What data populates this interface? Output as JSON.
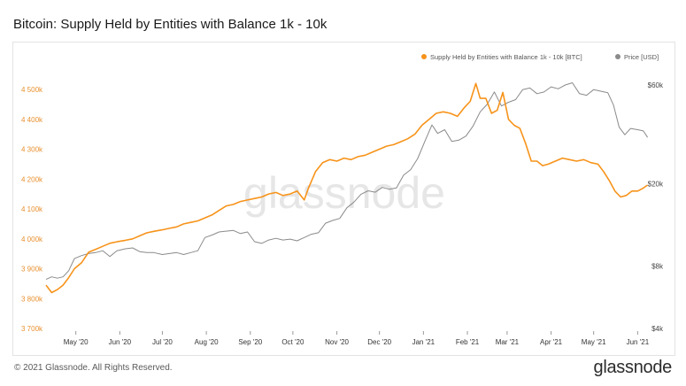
{
  "title": "Bitcoin: Supply Held by Entities with Balance 1k - 10k",
  "footer": {
    "copyright": "© 2021 Glassnode. All Rights Reserved.",
    "logo": "glassnode"
  },
  "watermark": "glassnode",
  "colors": {
    "supply": "#f7931a",
    "price": "#8a8a8a",
    "axis_left": "#e8902f",
    "axis_right": "#444444"
  },
  "chart_data": {
    "type": "line",
    "title": "Bitcoin: Supply Held by Entities with Balance 1k - 10k",
    "legend": {
      "placement": "top-right",
      "items": [
        "Supply Held by Entities with Balance 1k - 10k [BTC]",
        "Price [USD]"
      ]
    },
    "x_ticks": [
      "May '20",
      "Jun '20",
      "Jul '20",
      "Aug '20",
      "Sep '20",
      "Oct '20",
      "Nov '20",
      "Dec '20",
      "Jan '21",
      "Feb '21",
      "Mar '21",
      "Apr '21",
      "May '21",
      "Jun '21"
    ],
    "y_left": {
      "ticks": [
        "4 500k",
        "4 400k",
        "4 300k",
        "4 200k",
        "4 100k",
        "4 000k",
        "3 900k",
        "3 800k",
        "3 700k"
      ],
      "min": 3700000,
      "max": 4500000,
      "scale": "linear"
    },
    "y_right": {
      "ticks": [
        "$60k",
        "$20k",
        "$8k",
        "$4k"
      ],
      "scale": "log"
    },
    "grid": false,
    "series": [
      {
        "name": "Supply Held by Entities with Balance 1k - 10k [BTC]",
        "axis": "left",
        "x": [
          "2020-04-10",
          "2020-04-14",
          "2020-04-18",
          "2020-04-22",
          "2020-04-26",
          "2020-04-30",
          "2020-05-05",
          "2020-05-10",
          "2020-05-15",
          "2020-05-20",
          "2020-05-25",
          "2020-05-30",
          "2020-06-05",
          "2020-06-10",
          "2020-06-15",
          "2020-06-20",
          "2020-06-25",
          "2020-07-01",
          "2020-07-06",
          "2020-07-11",
          "2020-07-16",
          "2020-07-21",
          "2020-07-26",
          "2020-07-31",
          "2020-08-05",
          "2020-08-10",
          "2020-08-15",
          "2020-08-20",
          "2020-08-25",
          "2020-08-30",
          "2020-09-04",
          "2020-09-09",
          "2020-09-14",
          "2020-09-19",
          "2020-09-24",
          "2020-09-29",
          "2020-10-04",
          "2020-10-09",
          "2020-10-12",
          "2020-10-17",
          "2020-10-22",
          "2020-10-27",
          "2020-11-01",
          "2020-11-06",
          "2020-11-11",
          "2020-11-16",
          "2020-11-21",
          "2020-11-26",
          "2020-12-01",
          "2020-12-06",
          "2020-12-11",
          "2020-12-16",
          "2020-12-21",
          "2020-12-26",
          "2020-12-31",
          "2021-01-05",
          "2021-01-10",
          "2021-01-15",
          "2021-01-20",
          "2021-01-25",
          "2021-01-30",
          "2021-02-03",
          "2021-02-07",
          "2021-02-10",
          "2021-02-14",
          "2021-02-18",
          "2021-02-22",
          "2021-02-26",
          "2021-03-02",
          "2021-03-06",
          "2021-03-10",
          "2021-03-14",
          "2021-03-18",
          "2021-03-22",
          "2021-03-26",
          "2021-03-30",
          "2021-04-04",
          "2021-04-09",
          "2021-04-14",
          "2021-04-19",
          "2021-04-24",
          "2021-04-29",
          "2021-05-04",
          "2021-05-08",
          "2021-05-12",
          "2021-05-16",
          "2021-05-20",
          "2021-05-24",
          "2021-05-28",
          "2021-06-01",
          "2021-06-05",
          "2021-06-08"
        ],
        "y": [
          3845000,
          3820000,
          3830000,
          3845000,
          3870000,
          3900000,
          3920000,
          3955000,
          3965000,
          3975000,
          3985000,
          3990000,
          3995000,
          4000000,
          4010000,
          4020000,
          4025000,
          4030000,
          4035000,
          4040000,
          4050000,
          4055000,
          4060000,
          4070000,
          4080000,
          4095000,
          4110000,
          4115000,
          4125000,
          4130000,
          4135000,
          4140000,
          4150000,
          4155000,
          4145000,
          4150000,
          4160000,
          4130000,
          4170000,
          4225000,
          4255000,
          4265000,
          4260000,
          4270000,
          4265000,
          4275000,
          4280000,
          4290000,
          4300000,
          4310000,
          4315000,
          4325000,
          4335000,
          4350000,
          4380000,
          4400000,
          4420000,
          4425000,
          4420000,
          4410000,
          4440000,
          4460000,
          4520000,
          4470000,
          4470000,
          4420000,
          4430000,
          4490000,
          4400000,
          4380000,
          4370000,
          4320000,
          4260000,
          4260000,
          4245000,
          4250000,
          4260000,
          4270000,
          4265000,
          4260000,
          4265000,
          4255000,
          4250000,
          4225000,
          4195000,
          4160000,
          4140000,
          4145000,
          4160000,
          4160000,
          4170000,
          4180000
        ]
      },
      {
        "name": "Price [USD]",
        "axis": "right",
        "x": [
          "2020-04-10",
          "2020-04-14",
          "2020-04-18",
          "2020-04-22",
          "2020-04-26",
          "2020-04-30",
          "2020-05-05",
          "2020-05-10",
          "2020-05-15",
          "2020-05-20",
          "2020-05-25",
          "2020-05-30",
          "2020-06-05",
          "2020-06-10",
          "2020-06-15",
          "2020-06-20",
          "2020-06-25",
          "2020-07-01",
          "2020-07-06",
          "2020-07-11",
          "2020-07-16",
          "2020-07-21",
          "2020-07-26",
          "2020-07-31",
          "2020-08-05",
          "2020-08-10",
          "2020-08-15",
          "2020-08-20",
          "2020-08-25",
          "2020-08-30",
          "2020-09-04",
          "2020-09-09",
          "2020-09-14",
          "2020-09-19",
          "2020-09-24",
          "2020-09-29",
          "2020-10-04",
          "2020-10-09",
          "2020-10-14",
          "2020-10-19",
          "2020-10-24",
          "2020-10-29",
          "2020-11-03",
          "2020-11-08",
          "2020-11-13",
          "2020-11-18",
          "2020-11-23",
          "2020-11-28",
          "2020-12-03",
          "2020-12-08",
          "2020-12-13",
          "2020-12-18",
          "2020-12-23",
          "2020-12-28",
          "2021-01-02",
          "2021-01-07",
          "2021-01-11",
          "2021-01-16",
          "2021-01-21",
          "2021-01-26",
          "2021-01-31",
          "2021-02-05",
          "2021-02-10",
          "2021-02-15",
          "2021-02-20",
          "2021-02-25",
          "2021-03-02",
          "2021-03-07",
          "2021-03-12",
          "2021-03-17",
          "2021-03-22",
          "2021-03-27",
          "2021-04-01",
          "2021-04-06",
          "2021-04-11",
          "2021-04-16",
          "2021-04-21",
          "2021-04-26",
          "2021-05-01",
          "2021-05-06",
          "2021-05-11",
          "2021-05-15",
          "2021-05-19",
          "2021-05-23",
          "2021-05-27",
          "2021-06-01",
          "2021-06-05",
          "2021-06-08"
        ],
        "y": [
          6900,
          7100,
          7000,
          7100,
          7600,
          8700,
          9000,
          9200,
          9300,
          9500,
          8900,
          9500,
          9700,
          9800,
          9400,
          9300,
          9300,
          9100,
          9200,
          9300,
          9100,
          9300,
          9500,
          11000,
          11300,
          11700,
          11800,
          11900,
          11500,
          11700,
          10500,
          10300,
          10700,
          10900,
          10700,
          10800,
          10600,
          11000,
          11400,
          11600,
          12900,
          13300,
          13600,
          15300,
          16300,
          17800,
          18500,
          18200,
          19200,
          18800,
          19100,
          22000,
          23400,
          26500,
          32000,
          38500,
          35000,
          36500,
          32000,
          32500,
          34000,
          38000,
          44500,
          48500,
          55500,
          47500,
          49500,
          51000,
          57000,
          58000,
          54500,
          55500,
          58800,
          57500,
          60000,
          61500,
          54500,
          53500,
          57000,
          56000,
          55000,
          48000,
          37500,
          34500,
          37000,
          36500,
          36000,
          33500
        ]
      }
    ]
  }
}
